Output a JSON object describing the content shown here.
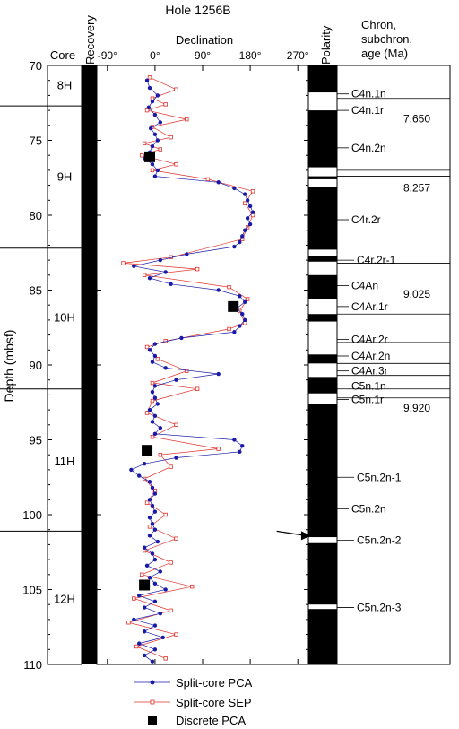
{
  "title": "Hole 1256B",
  "headers": {
    "core": "Core",
    "recovery": "Recovery",
    "declination": "Declination",
    "polarity": "Polarity",
    "chron": [
      "Chron,",
      "subchron,",
      "age (Ma)"
    ]
  },
  "ylabel": "Depth (mbsf)",
  "chart_data": {
    "type": "scatter",
    "title": "Hole 1256B",
    "xlabel": "Declination",
    "ylabel": "Depth (mbsf)",
    "xlim": [
      -110,
      290
    ],
    "ylim": [
      110,
      70
    ],
    "x_ticks": [
      {
        "value": -90,
        "label": "-90°"
      },
      {
        "value": 0,
        "label": "0°"
      },
      {
        "value": 90,
        "label": "90°"
      },
      {
        "value": 180,
        "label": "180°"
      },
      {
        "value": 270,
        "label": "270°"
      }
    ],
    "y_ticks": [
      70,
      75,
      80,
      85,
      90,
      95,
      100,
      105,
      110
    ],
    "series": [
      {
        "name": "Split-core PCA",
        "color": "#1a1aa8",
        "marker": "circle",
        "points": [
          [
            -15,
            71.0
          ],
          [
            -10,
            71.5
          ],
          [
            5,
            72.0
          ],
          [
            -5,
            72.4
          ],
          [
            -12,
            72.8
          ],
          [
            0,
            73.3
          ],
          [
            10,
            73.8
          ],
          [
            -8,
            74.2
          ],
          [
            0,
            74.6
          ],
          [
            5,
            75.0
          ],
          [
            -5,
            75.4
          ],
          [
            -10,
            75.8
          ],
          [
            -20,
            76.2
          ],
          [
            -5,
            76.6
          ],
          [
            5,
            77.0
          ],
          [
            0,
            77.4
          ],
          [
            120,
            77.8
          ],
          [
            150,
            78.2
          ],
          [
            170,
            78.6
          ],
          [
            175,
            79.0
          ],
          [
            180,
            79.4
          ],
          [
            185,
            79.8
          ],
          [
            175,
            80.2
          ],
          [
            180,
            80.6
          ],
          [
            170,
            81.0
          ],
          [
            165,
            81.4
          ],
          [
            160,
            81.8
          ],
          [
            150,
            82.1
          ],
          [
            60,
            82.6
          ],
          [
            10,
            83.0
          ],
          [
            -40,
            83.4
          ],
          [
            20,
            83.8
          ],
          [
            -10,
            84.2
          ],
          [
            30,
            84.6
          ],
          [
            120,
            85.0
          ],
          [
            160,
            85.4
          ],
          [
            170,
            85.8
          ],
          [
            155,
            86.2
          ],
          [
            165,
            86.6
          ],
          [
            170,
            87.0
          ],
          [
            160,
            87.4
          ],
          [
            150,
            87.8
          ],
          [
            50,
            88.2
          ],
          [
            0,
            88.6
          ],
          [
            -10,
            89.0
          ],
          [
            0,
            89.4
          ],
          [
            -5,
            89.8
          ],
          [
            20,
            90.2
          ],
          [
            120,
            90.6
          ],
          [
            40,
            91.0
          ],
          [
            0,
            91.4
          ],
          [
            -5,
            91.8
          ],
          [
            0,
            92.2
          ],
          [
            5,
            92.6
          ],
          [
            -10,
            93.0
          ],
          [
            0,
            93.4
          ],
          [
            -5,
            93.8
          ],
          [
            10,
            94.2
          ],
          [
            0,
            94.6
          ],
          [
            150,
            95.0
          ],
          [
            165,
            95.4
          ],
          [
            160,
            95.8
          ],
          [
            40,
            96.2
          ],
          [
            -20,
            96.6
          ],
          [
            -45,
            97.0
          ],
          [
            -30,
            97.4
          ],
          [
            -10,
            97.8
          ],
          [
            -5,
            98.2
          ],
          [
            0,
            98.6
          ],
          [
            -10,
            99.0
          ],
          [
            -5,
            99.4
          ],
          [
            0,
            99.8
          ],
          [
            -10,
            100.2
          ],
          [
            -5,
            100.6
          ],
          [
            0,
            101.0
          ],
          [
            -10,
            101.4
          ],
          [
            5,
            101.8
          ],
          [
            -20,
            102.2
          ],
          [
            -5,
            102.6
          ],
          [
            0,
            103.0
          ],
          [
            -15,
            103.4
          ],
          [
            10,
            103.8
          ],
          [
            -10,
            104.2
          ],
          [
            0,
            104.6
          ],
          [
            20,
            105.0
          ],
          [
            -30,
            105.4
          ],
          [
            0,
            105.8
          ],
          [
            -20,
            106.2
          ],
          [
            10,
            106.6
          ],
          [
            -40,
            107.0
          ],
          [
            0,
            107.4
          ],
          [
            -20,
            107.8
          ],
          [
            15,
            108.2
          ],
          [
            -30,
            108.6
          ],
          [
            0,
            109.0
          ],
          [
            -20,
            109.4
          ],
          [
            -5,
            109.8
          ]
        ]
      },
      {
        "name": "Split-core SEP",
        "color": "#e0302a",
        "marker": "square",
        "points": [
          [
            -10,
            70.8
          ],
          [
            40,
            71.6
          ],
          [
            -5,
            72.2
          ],
          [
            20,
            72.6
          ],
          [
            -15,
            73.0
          ],
          [
            60,
            73.6
          ],
          [
            -5,
            74.1
          ],
          [
            30,
            74.8
          ],
          [
            -20,
            75.2
          ],
          [
            10,
            75.6
          ],
          [
            -25,
            76.0
          ],
          [
            40,
            76.6
          ],
          [
            -5,
            77.0
          ],
          [
            100,
            77.6
          ],
          [
            185,
            78.4
          ],
          [
            170,
            79.2
          ],
          [
            185,
            80.0
          ],
          [
            175,
            80.8
          ],
          [
            165,
            81.6
          ],
          [
            30,
            82.8
          ],
          [
            -60,
            83.2
          ],
          [
            80,
            83.6
          ],
          [
            -20,
            84.0
          ],
          [
            140,
            84.8
          ],
          [
            175,
            85.6
          ],
          [
            160,
            86.4
          ],
          [
            170,
            87.2
          ],
          [
            140,
            87.6
          ],
          [
            20,
            88.4
          ],
          [
            -15,
            88.8
          ],
          [
            5,
            89.6
          ],
          [
            60,
            90.4
          ],
          [
            -5,
            91.2
          ],
          [
            80,
            91.6
          ],
          [
            -5,
            92.4
          ],
          [
            -15,
            93.2
          ],
          [
            40,
            94.0
          ],
          [
            -5,
            94.8
          ],
          [
            120,
            95.6
          ],
          [
            10,
            96.0
          ],
          [
            30,
            96.8
          ],
          [
            -20,
            97.6
          ],
          [
            0,
            98.4
          ],
          [
            -15,
            99.2
          ],
          [
            20,
            100.0
          ],
          [
            -10,
            100.8
          ],
          [
            40,
            101.6
          ],
          [
            -20,
            102.4
          ],
          [
            30,
            103.2
          ],
          [
            -25,
            104.0
          ],
          [
            70,
            104.8
          ],
          [
            -40,
            105.6
          ],
          [
            30,
            106.4
          ],
          [
            -50,
            107.2
          ],
          [
            40,
            108.0
          ],
          [
            -35,
            108.8
          ],
          [
            20,
            109.6
          ]
        ]
      },
      {
        "name": "Discrete PCA",
        "color": "#000000",
        "marker": "big-square",
        "points": [
          [
            -10,
            76.1
          ],
          [
            148,
            86.1
          ],
          [
            -15,
            95.7
          ],
          [
            -20,
            104.7
          ]
        ]
      }
    ],
    "legend": [
      "Split-core PCA",
      "Split-core SEP",
      "Discrete PCA"
    ],
    "legend_position": "bottom-center",
    "arrow": {
      "from": [
        230,
        101.1
      ],
      "to": [
        295,
        101.4
      ]
    },
    "grid": false
  },
  "cores": [
    {
      "label": "8H",
      "mid": 71.3,
      "top": 70,
      "bottom": 72.7
    },
    {
      "label": "9H",
      "mid": 77.4,
      "top": 72.7,
      "bottom": 82.2
    },
    {
      "label": "10H",
      "mid": 86.8,
      "top": 82.2,
      "bottom": 91.6
    },
    {
      "label": "11H",
      "mid": 96.4,
      "top": 91.6,
      "bottom": 101.1
    },
    {
      "label": "12H",
      "mid": 105.6,
      "top": 101.1,
      "bottom": 110
    }
  ],
  "recovery": [
    [
      70,
      110
    ]
  ],
  "polarity_normal": [
    [
      70,
      71.8
    ],
    [
      73,
      76.8
    ],
    [
      77.4,
      77.6
    ],
    [
      78.1,
      82.3
    ],
    [
      82.7,
      83.1
    ],
    [
      84,
      85.6
    ],
    [
      86.6,
      87.1
    ],
    [
      89.3,
      89.9
    ],
    [
      90.8,
      91.9
    ],
    [
      92.6,
      101.5
    ],
    [
      101.9,
      106
    ],
    [
      106.3,
      110
    ]
  ],
  "chrons": [
    {
      "label": "C4n.1n",
      "depth": 71.9
    },
    {
      "label": "C4n.1r",
      "depth": 73.0
    },
    {
      "label": "C4n.2n",
      "depth": 75.5
    },
    {
      "label": "C4r.2r",
      "depth": 80.3
    },
    {
      "label": "C4r.2r-1",
      "depth": 83.0
    },
    {
      "label": "C4An",
      "depth": 84.7
    },
    {
      "label": "C4Ar.1r",
      "depth": 86.1
    },
    {
      "label": "C4Ar.2r",
      "depth": 88.3
    },
    {
      "label": "C4Ar.2n",
      "depth": 89.4
    },
    {
      "label": "C4Ar.3r",
      "depth": 90.4
    },
    {
      "label": "C5n.1n",
      "depth": 91.4
    },
    {
      "label": "C5n.1r",
      "depth": 92.3
    },
    {
      "label": "C5n.2n-1",
      "depth": 97.5
    },
    {
      "label": "C5n.2n",
      "depth": 99.6
    },
    {
      "label": "C5n.2n-2",
      "depth": 101.7
    },
    {
      "label": "C5n.2n-3",
      "depth": 106.2
    }
  ],
  "chron_lines": [
    72.2,
    77.0,
    77.4,
    83.2,
    86.6,
    88.5,
    89.9,
    90.7,
    91.6,
    92.2
  ],
  "ages": [
    {
      "label": "7.650",
      "depth": 73.2
    },
    {
      "label": "8.257",
      "depth": 77.8
    },
    {
      "label": "9.025",
      "depth": 84.9
    },
    {
      "label": "9.920",
      "depth": 92.5
    }
  ]
}
